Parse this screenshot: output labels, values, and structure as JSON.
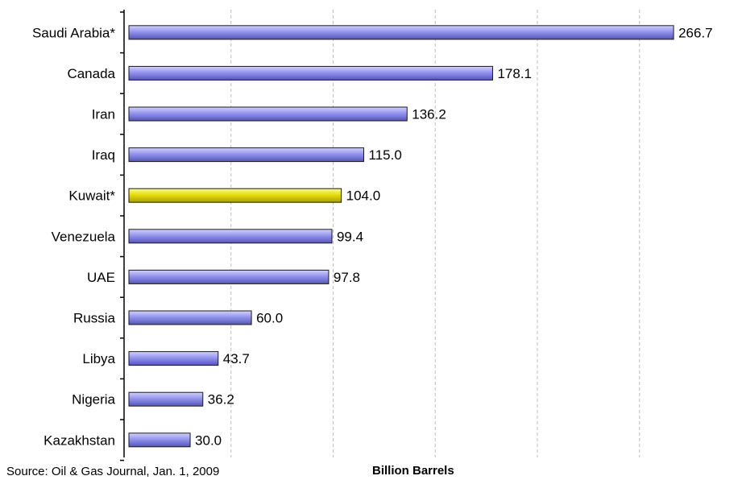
{
  "chart_data": {
    "type": "bar",
    "orientation": "horizontal",
    "categories": [
      "Saudi Arabia*",
      "Canada",
      "Iran",
      "Iraq",
      "Kuwait*",
      "Venezuela",
      "UAE",
      "Russia",
      "Libya",
      "Nigeria",
      "Kazakhstan"
    ],
    "values": [
      266.7,
      178.1,
      136.2,
      115.0,
      104.0,
      99.4,
      97.8,
      60.0,
      43.7,
      36.2,
      30.0
    ],
    "value_labels": [
      "266.7",
      "178.1",
      "136.2",
      "115.0",
      "104.0",
      "99.4",
      "97.8",
      "60.0",
      "43.7",
      "36.2",
      "30.0"
    ],
    "highlight_category": "Kuwait*",
    "xlabel": "Billion Barrels",
    "xlim": [
      0,
      300
    ],
    "grid": "vertical dashed",
    "bar_color": "#8a8ae6",
    "highlight_color": "#e8e000",
    "source": "Source: Oil & Gas Journal, Jan. 1, 2009"
  }
}
